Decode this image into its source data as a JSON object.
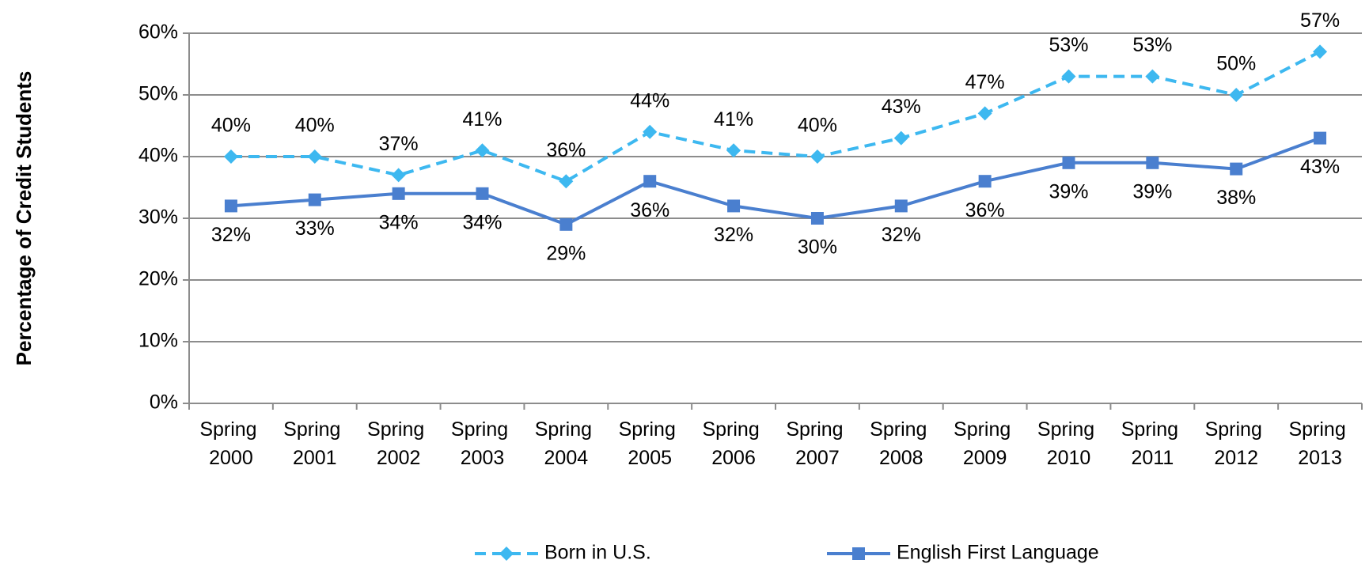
{
  "chart_data": {
    "type": "line",
    "y_axis_label": "Percentage of Credit Students",
    "categories": [
      "Spring 2000",
      "Spring 2001",
      "Spring 2002",
      "Spring 2003",
      "Spring 2004",
      "Spring 2005",
      "Spring 2006",
      "Spring 2007",
      "Spring 2008",
      "Spring 2009",
      "Spring 2010",
      "Spring 2011",
      "Spring 2012",
      "Spring 2013"
    ],
    "series": [
      {
        "name": "Born in U.S.",
        "color": "#3db8f0",
        "dashed": true,
        "marker": "diamond",
        "values": [
          40,
          40,
          37,
          41,
          36,
          44,
          41,
          40,
          43,
          47,
          53,
          53,
          50,
          57
        ],
        "value_labels": [
          "40%",
          "40%",
          "37%",
          "41%",
          "36%",
          "44%",
          "41%",
          "40%",
          "43%",
          "47%",
          "53%",
          "53%",
          "50%",
          "57%"
        ]
      },
      {
        "name": "English First Language",
        "color": "#4a7fcf",
        "dashed": false,
        "marker": "square",
        "values": [
          32,
          33,
          34,
          34,
          29,
          36,
          32,
          30,
          32,
          36,
          39,
          39,
          38,
          43
        ],
        "value_labels": [
          "32%",
          "33%",
          "34%",
          "34%",
          "29%",
          "36%",
          "32%",
          "30%",
          "32%",
          "36%",
          "39%",
          "39%",
          "38%",
          "43%"
        ]
      }
    ],
    "ylim": [
      0,
      60
    ],
    "yticks": [
      {
        "value": 0,
        "label": "0%"
      },
      {
        "value": 10,
        "label": "10%"
      },
      {
        "value": 20,
        "label": "20%"
      },
      {
        "value": 30,
        "label": "30%"
      },
      {
        "value": 40,
        "label": "40%"
      },
      {
        "value": 50,
        "label": "50%"
      },
      {
        "value": 60,
        "label": "60%"
      }
    ],
    "grid": true,
    "legend": "bottom"
  }
}
